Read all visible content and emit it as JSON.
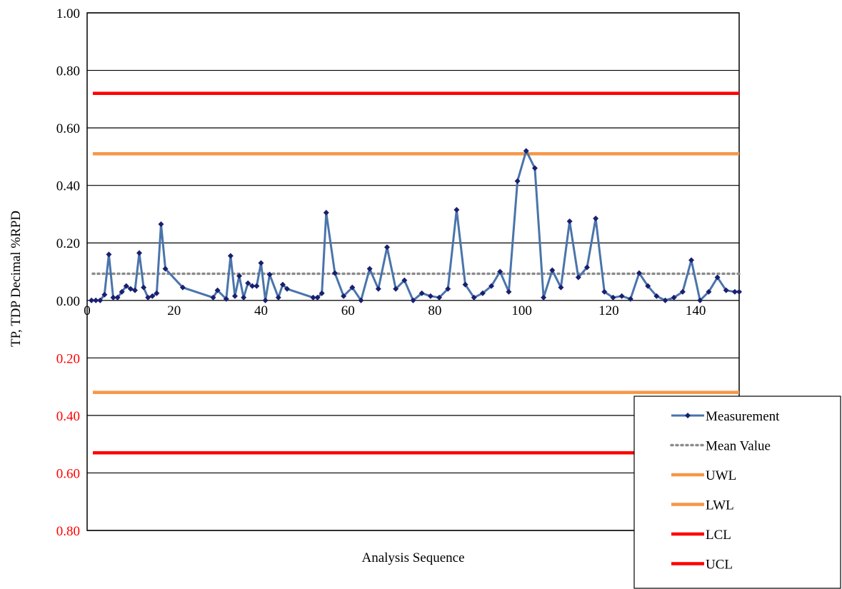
{
  "chart_data": {
    "type": "line",
    "title": "",
    "xlabel": "Analysis Sequence",
    "ylabel": "TP, TDP Decimal %RPD",
    "xlim": [
      0,
      150
    ],
    "ylim": [
      -0.8,
      1.0
    ],
    "grid": true,
    "legend_position": "bottom-right",
    "x_ticks": [
      {
        "value": 0,
        "label": "0"
      },
      {
        "value": 20,
        "label": "20"
      },
      {
        "value": 40,
        "label": "40"
      },
      {
        "value": 60,
        "label": "60"
      },
      {
        "value": 80,
        "label": "80"
      },
      {
        "value": 100,
        "label": "100"
      },
      {
        "value": 120,
        "label": "120"
      },
      {
        "value": 140,
        "label": "140"
      }
    ],
    "y_ticks": [
      {
        "value": 1.0,
        "label": "1.00",
        "color": "#000000"
      },
      {
        "value": 0.8,
        "label": "0.80",
        "color": "#000000"
      },
      {
        "value": 0.6,
        "label": "0.60",
        "color": "#000000"
      },
      {
        "value": 0.4,
        "label": "0.40",
        "color": "#000000"
      },
      {
        "value": 0.2,
        "label": "0.20",
        "color": "#000000"
      },
      {
        "value": 0.0,
        "label": "0.00",
        "color": "#000000"
      },
      {
        "value": -0.2,
        "label": "0.20",
        "color": "#ff0000"
      },
      {
        "value": -0.4,
        "label": "0.40",
        "color": "#ff0000"
      },
      {
        "value": -0.6,
        "label": "0.60",
        "color": "#ff0000"
      },
      {
        "value": -0.8,
        "label": "0.80",
        "color": "#ff0000"
      }
    ],
    "series": [
      {
        "name": "Measurement",
        "color": "#4a74ab",
        "marker_color": "#1a1f6e",
        "x": [
          1,
          2,
          3,
          4,
          5,
          6,
          7,
          8,
          9,
          10,
          11,
          12,
          13,
          14,
          15,
          16,
          17,
          18,
          22,
          29,
          30,
          32,
          33,
          34,
          35,
          36,
          37,
          38,
          39,
          40,
          41,
          42,
          44,
          45,
          46,
          52,
          53,
          54,
          55,
          57,
          59,
          61,
          63,
          65,
          67,
          69,
          71,
          73,
          75,
          77,
          79,
          81,
          83,
          85,
          87,
          89,
          91,
          93,
          95,
          97,
          99,
          101,
          103,
          105,
          107,
          109,
          111,
          113,
          115,
          117,
          119,
          121,
          123,
          125,
          127,
          129,
          131,
          133,
          135,
          137,
          139,
          141,
          143,
          145,
          147,
          149,
          150
        ],
        "y": [
          0.0,
          0.0,
          0.0,
          0.02,
          0.16,
          0.01,
          0.01,
          0.03,
          0.05,
          0.04,
          0.035,
          0.165,
          0.045,
          0.01,
          0.015,
          0.025,
          0.265,
          0.11,
          0.045,
          0.01,
          0.035,
          0.005,
          0.155,
          0.015,
          0.085,
          0.01,
          0.06,
          0.05,
          0.05,
          0.13,
          0.0,
          0.09,
          0.01,
          0.055,
          0.04,
          0.01,
          0.01,
          0.025,
          0.305,
          0.095,
          0.015,
          0.045,
          0.0,
          0.11,
          0.04,
          0.185,
          0.04,
          0.07,
          0.0,
          0.025,
          0.015,
          0.01,
          0.04,
          0.315,
          0.055,
          0.01,
          0.025,
          0.05,
          0.1,
          0.03,
          0.415,
          0.52,
          0.46,
          0.01,
          0.105,
          0.045,
          0.275,
          0.08,
          0.115,
          0.285,
          0.03,
          0.01,
          0.015,
          0.005,
          0.095,
          0.05,
          0.015,
          0.0,
          0.01,
          0.03,
          0.14,
          0.0,
          0.03,
          0.08,
          0.035,
          0.03,
          0.03
        ]
      },
      {
        "name": "Mean Value",
        "color": "#8c8c8c",
        "value": 0.093
      },
      {
        "name": "UWL",
        "color": "#f79646",
        "value": 0.51
      },
      {
        "name": "LWL",
        "color": "#f79646",
        "value": -0.32
      },
      {
        "name": "LCL",
        "color": "#ff0000",
        "value": -0.53
      },
      {
        "name": "UCL",
        "color": "#ff0000",
        "value": 0.72
      }
    ]
  }
}
